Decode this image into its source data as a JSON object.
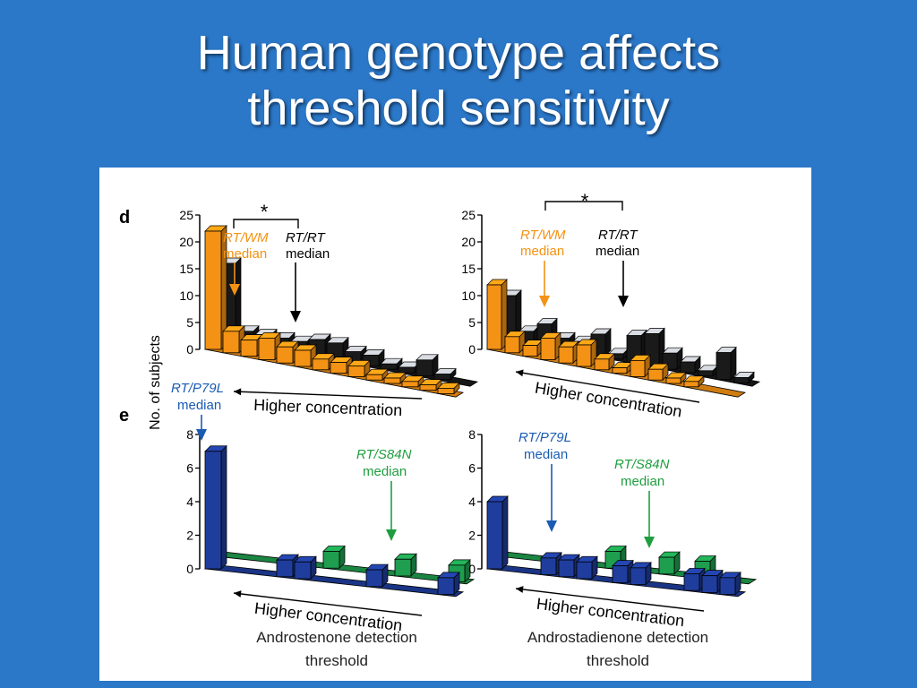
{
  "slide": {
    "title_line1": "Human genotype affects",
    "title_line2": "threshold sensitivity"
  },
  "colors": {
    "background": "#2b77c8",
    "orange": "#f39214",
    "black": "#1a1a1a",
    "blue": "#1f3d9c",
    "green": "#1e9e4e",
    "label_blue": "#1a5bb3",
    "label_green": "#1e9e3e",
    "label_orange": "#f39214"
  },
  "figure": {
    "panel_d_letter": "d",
    "panel_e_letter": "e",
    "ylabel": "No. of subjects",
    "significance": "*",
    "rt_wm": "RT/WM",
    "rt_rt": "RT/RT",
    "rt_p79l": "RT/P79L",
    "rt_s84n": "RT/S84N",
    "median": "median",
    "xlabel": "Higher concentration",
    "left_caption_line1": "Androstenone detection",
    "left_caption_line2": "threshold",
    "right_caption_line1": "Androstadienone detection",
    "right_caption_line2": "threshold"
  },
  "chart_data": [
    {
      "panel": "d-left",
      "type": "bar",
      "xlabel": "Higher concentration",
      "ylabel": "No. of subjects",
      "ylim": [
        0,
        25
      ],
      "yticks": [
        0,
        5,
        10,
        15,
        20,
        25
      ],
      "series": [
        {
          "name": "RT/WM",
          "values": [
            22,
            4,
            3,
            4,
            3,
            3,
            2,
            2,
            2,
            1,
            1,
            1,
            1,
            1
          ]
        },
        {
          "name": "RT/RT",
          "values": [
            14,
            2,
            2,
            2,
            2,
            3,
            3,
            2,
            2,
            1,
            1,
            3,
            1,
            0
          ]
        }
      ]
    },
    {
      "panel": "d-right",
      "type": "bar",
      "xlabel": "Higher concentration",
      "ylabel": "No. of subjects",
      "ylim": [
        0,
        25
      ],
      "yticks": [
        0,
        5,
        10,
        15,
        20,
        25
      ],
      "series": [
        {
          "name": "RT/WM",
          "values": [
            12,
            3,
            2,
            4,
            3,
            4,
            2,
            1,
            3,
            2,
            1,
            1,
            0,
            0
          ]
        },
        {
          "name": "RT/RT",
          "values": [
            8,
            2,
            4,
            2,
            2,
            4,
            1,
            5,
            6,
            3,
            2,
            1,
            5,
            1
          ]
        }
      ]
    },
    {
      "panel": "e-left",
      "type": "bar",
      "xlabel": "Higher concentration",
      "ylabel": "No. of subjects",
      "ylim": [
        0,
        8
      ],
      "yticks": [
        0,
        2,
        4,
        6,
        8
      ],
      "series": [
        {
          "name": "RT/P79L",
          "values": [
            7,
            0,
            0,
            0,
            1,
            1,
            0,
            0,
            0,
            1,
            0,
            0,
            0,
            1
          ]
        },
        {
          "name": "RT/S84N",
          "values": [
            0,
            0,
            0,
            0,
            0,
            0,
            1,
            0,
            0,
            0,
            1,
            0,
            0,
            1
          ]
        }
      ]
    },
    {
      "panel": "e-right",
      "type": "bar",
      "xlabel": "Higher concentration",
      "ylabel": "No. of subjects",
      "ylim": [
        0,
        8
      ],
      "yticks": [
        0,
        2,
        4,
        6,
        8
      ],
      "series": [
        {
          "name": "RT/P79L",
          "values": [
            4,
            0,
            0,
            1,
            1,
            1,
            0,
            1,
            1,
            0,
            0,
            1,
            1,
            1
          ]
        },
        {
          "name": "RT/S84N",
          "values": [
            0,
            0,
            0,
            0,
            0,
            0,
            1,
            0,
            0,
            1,
            0,
            1,
            0,
            0
          ]
        }
      ]
    }
  ]
}
